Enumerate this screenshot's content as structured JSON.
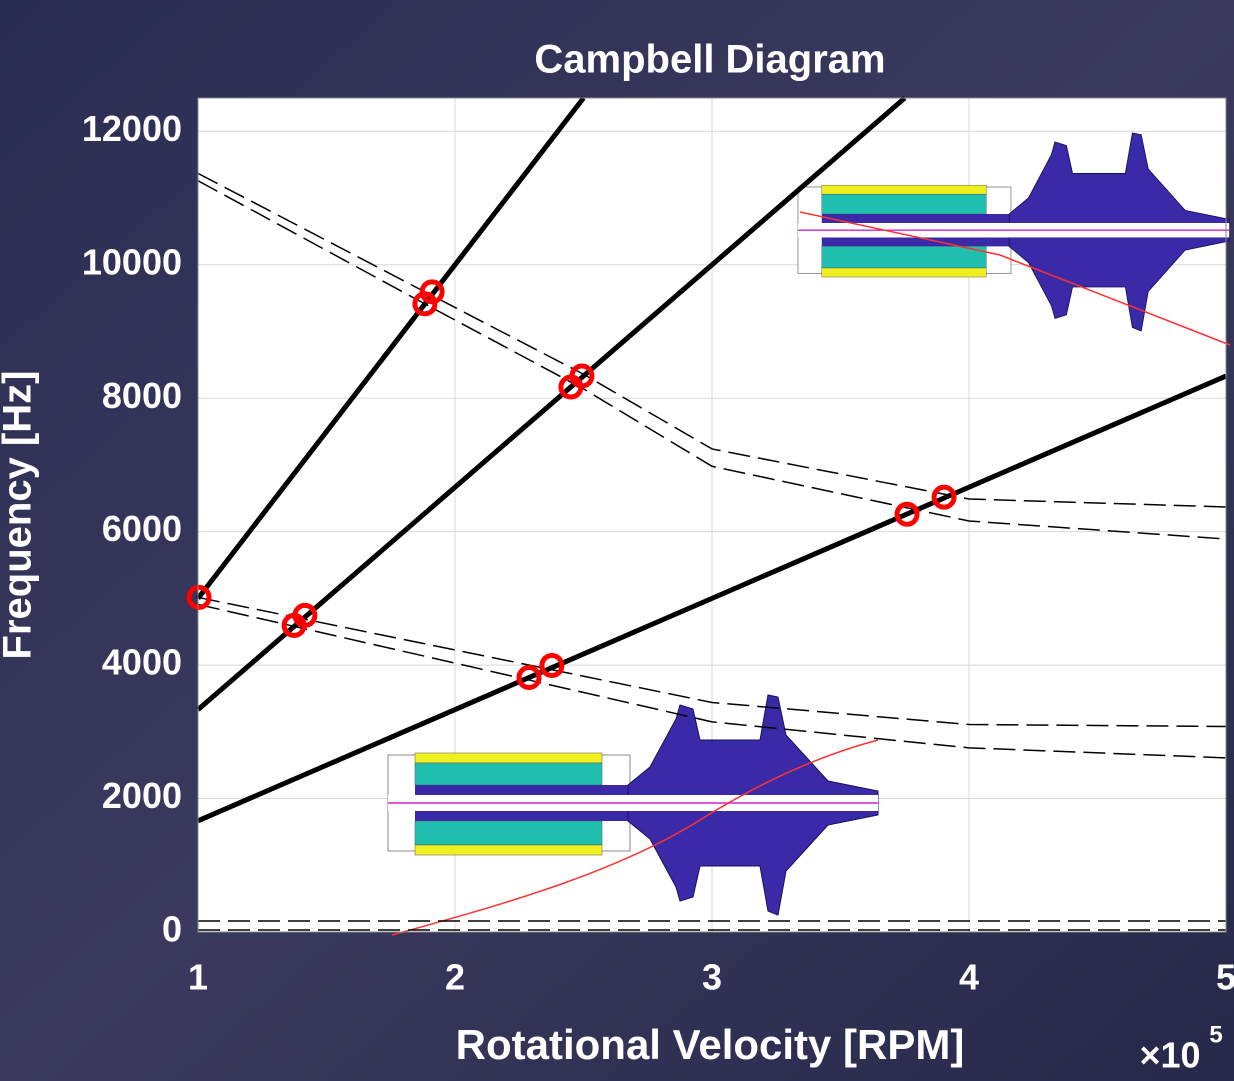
{
  "chart_data": {
    "type": "line",
    "title": "Campbell Diagram",
    "xlabel": "Rotational Velocity [RPM]",
    "ylabel": "Frequency [Hz]",
    "x_multiplier": {
      "base": "×10",
      "exponent": "5"
    },
    "xlim": [
      100000,
      500000
    ],
    "ylim": [
      0,
      12500
    ],
    "xticks": [
      {
        "value": 100000,
        "label": "1"
      },
      {
        "value": 200000,
        "label": "2"
      },
      {
        "value": 300000,
        "label": "3"
      },
      {
        "value": 400000,
        "label": "4"
      },
      {
        "value": 500000,
        "label": "5"
      }
    ],
    "yticks": [
      0,
      2000,
      4000,
      6000,
      8000,
      10000,
      12000
    ],
    "grid": true,
    "series": [
      {
        "color": "#000000",
        "style": "solid",
        "x": [
          100000,
          250000
        ],
        "values": [
          5000,
          12500
        ]
      },
      {
        "color": "#000000",
        "style": "solid",
        "x": [
          100000,
          375000
        ],
        "values": [
          3333,
          12500
        ]
      },
      {
        "color": "#000000",
        "style": "solid",
        "x": [
          100000,
          500000
        ],
        "values": [
          1667,
          8333
        ]
      },
      {
        "color": "#000000",
        "style": "dashed",
        "x": [
          100000,
          188000,
          250000,
          300000,
          400000,
          500000
        ],
        "values": [
          11370,
          9600,
          8360,
          7240,
          6490,
          6370
        ]
      },
      {
        "color": "#000000",
        "style": "dashed",
        "x": [
          100000,
          188000,
          250000,
          300000,
          400000,
          500000
        ],
        "values": [
          11260,
          9420,
          8140,
          6980,
          6160,
          5890
        ]
      },
      {
        "color": "#000000",
        "style": "dashed",
        "x": [
          100000,
          300000,
          400000,
          500000
        ],
        "values": [
          5015,
          3440,
          3110,
          3080
        ]
      },
      {
        "color": "#000000",
        "style": "dashed",
        "x": [
          100000,
          300000,
          400000,
          500000
        ],
        "values": [
          4910,
          3150,
          2760,
          2610
        ]
      },
      {
        "color": "#000000",
        "style": "dashed",
        "x": [
          100000,
          500000
        ],
        "values": [
          165,
          165
        ]
      },
      {
        "color": "#000000",
        "style": "dashed",
        "x": [
          100000,
          500000
        ],
        "values": [
          30,
          30
        ]
      }
    ],
    "intersections": {
      "color": "#ff0000",
      "x": [
        100400,
        137400,
        141600,
        188300,
        191100,
        228800,
        237700,
        245100,
        249400,
        375900,
        390300
      ],
      "values": [
        5015,
        4595,
        4745,
        9415,
        9595,
        3814,
        3994,
        8168,
        8333,
        6261,
        6517
      ]
    }
  }
}
